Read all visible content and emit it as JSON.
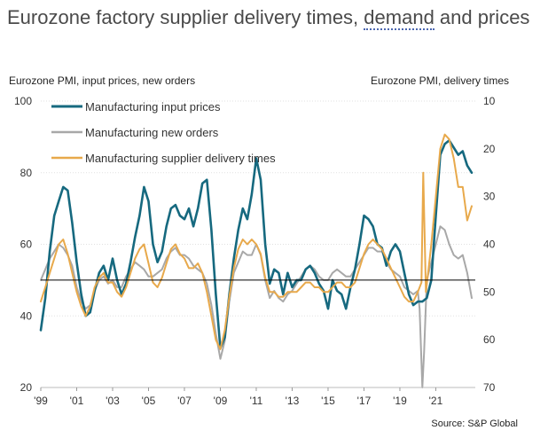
{
  "title_part1": "Eurozone factory supplier delivery times, ",
  "title_underlined": "demand",
  "title_part2": " and prices",
  "left_axis_title": "Eurozone PMI, input prices, new orders",
  "right_axis_title": "Eurozone PMI, delivery times",
  "source": "Source: S&P Global",
  "colors": {
    "input_prices": "#16697f",
    "new_orders": "#a8a8a8",
    "delivery_times": "#e8a94b",
    "reference_line": "#000000"
  },
  "chart_data": {
    "type": "line",
    "xlim": [
      1999,
      2023.2
    ],
    "x_ticks": [
      {
        "value": 1999,
        "label": "'99"
      },
      {
        "value": 2001,
        "label": "'01"
      },
      {
        "value": 2003,
        "label": "'03"
      },
      {
        "value": 2005,
        "label": "'05"
      },
      {
        "value": 2007,
        "label": "'07"
      },
      {
        "value": 2009,
        "label": "'09"
      },
      {
        "value": 2011,
        "label": "'11"
      },
      {
        "value": 2013,
        "label": "'13"
      },
      {
        "value": 2015,
        "label": "'15"
      },
      {
        "value": 2017,
        "label": "'17"
      },
      {
        "value": 2019,
        "label": "'19"
      },
      {
        "value": 2021,
        "label": "'21"
      }
    ],
    "left_axis": {
      "min": 20,
      "max": 100,
      "ticks": [
        20,
        40,
        60,
        80,
        100
      ]
    },
    "right_axis": {
      "min": 10,
      "max": 70,
      "inverted": true,
      "ticks": [
        10,
        20,
        30,
        40,
        50,
        60,
        70
      ]
    },
    "reference_line": 50,
    "series": [
      {
        "name": "Manufacturing input prices",
        "axis": "left",
        "x": [
          1999.0,
          1999.25,
          1999.5,
          1999.75,
          2000.0,
          2000.25,
          2000.5,
          2000.75,
          2001.0,
          2001.25,
          2001.5,
          2001.75,
          2002.0,
          2002.25,
          2002.5,
          2002.75,
          2003.0,
          2003.25,
          2003.5,
          2003.75,
          2004.0,
          2004.25,
          2004.5,
          2004.75,
          2005.0,
          2005.25,
          2005.5,
          2005.75,
          2006.0,
          2006.25,
          2006.5,
          2006.75,
          2007.0,
          2007.25,
          2007.5,
          2007.75,
          2008.0,
          2008.25,
          2008.5,
          2008.75,
          2009.0,
          2009.25,
          2009.5,
          2009.75,
          2010.0,
          2010.25,
          2010.5,
          2010.75,
          2011.0,
          2011.25,
          2011.5,
          2011.75,
          2012.0,
          2012.25,
          2012.5,
          2012.75,
          2013.0,
          2013.25,
          2013.5,
          2013.75,
          2014.0,
          2014.25,
          2014.5,
          2014.75,
          2015.0,
          2015.25,
          2015.5,
          2015.75,
          2016.0,
          2016.25,
          2016.5,
          2016.75,
          2017.0,
          2017.25,
          2017.5,
          2017.75,
          2018.0,
          2018.25,
          2018.5,
          2018.75,
          2019.0,
          2019.25,
          2019.5,
          2019.75,
          2020.0,
          2020.25,
          2020.5,
          2020.75,
          2021.0,
          2021.25,
          2021.5,
          2021.75,
          2022.0,
          2022.25,
          2022.5,
          2022.75,
          2023.0
        ],
        "values": [
          36,
          45,
          58,
          68,
          72,
          76,
          75,
          66,
          55,
          46,
          40,
          41,
          47,
          52,
          54,
          50,
          56,
          50,
          46,
          49,
          55,
          62,
          68,
          76,
          72,
          60,
          55,
          58,
          65,
          70,
          71,
          68,
          67,
          70,
          65,
          70,
          77,
          78,
          64,
          46,
          31,
          34,
          46,
          56,
          64,
          70,
          67,
          74,
          84,
          78,
          60,
          49,
          53,
          52,
          46,
          52,
          48,
          50,
          50,
          53,
          54,
          52,
          49,
          47,
          42,
          50,
          47,
          46,
          42,
          48,
          53,
          60,
          68,
          67,
          65,
          60,
          59,
          54,
          58,
          60,
          58,
          52,
          46,
          43,
          44,
          44,
          45,
          50,
          68,
          85,
          88,
          89,
          87,
          85,
          86,
          82,
          80
        ]
      },
      {
        "name": "Manufacturing new orders",
        "axis": "left",
        "x": [
          1999.0,
          1999.25,
          1999.5,
          1999.75,
          2000.0,
          2000.25,
          2000.5,
          2000.75,
          2001.0,
          2001.25,
          2001.5,
          2001.75,
          2002.0,
          2002.25,
          2002.5,
          2002.75,
          2003.0,
          2003.25,
          2003.5,
          2003.75,
          2004.0,
          2004.25,
          2004.5,
          2004.75,
          2005.0,
          2005.25,
          2005.5,
          2005.75,
          2006.0,
          2006.25,
          2006.5,
          2006.75,
          2007.0,
          2007.25,
          2007.5,
          2007.75,
          2008.0,
          2008.25,
          2008.5,
          2008.75,
          2009.0,
          2009.25,
          2009.5,
          2009.75,
          2010.0,
          2010.25,
          2010.5,
          2010.75,
          2011.0,
          2011.25,
          2011.5,
          2011.75,
          2012.0,
          2012.25,
          2012.5,
          2012.75,
          2013.0,
          2013.25,
          2013.5,
          2013.75,
          2014.0,
          2014.25,
          2014.5,
          2014.75,
          2015.0,
          2015.25,
          2015.5,
          2015.75,
          2016.0,
          2016.25,
          2016.5,
          2016.75,
          2017.0,
          2017.25,
          2017.5,
          2017.75,
          2018.0,
          2018.25,
          2018.5,
          2018.75,
          2019.0,
          2019.25,
          2019.5,
          2019.75,
          2020.0,
          2020.1,
          2020.25,
          2020.35,
          2020.5,
          2020.75,
          2021.0,
          2021.25,
          2021.5,
          2021.75,
          2022.0,
          2022.25,
          2022.5,
          2022.75,
          2023.0
        ],
        "values": [
          50,
          53,
          56,
          58,
          60,
          59,
          57,
          54,
          48,
          44,
          42,
          43,
          47,
          50,
          51,
          49,
          50,
          48,
          48,
          51,
          53,
          55,
          54,
          53,
          51,
          51,
          52,
          53,
          56,
          58,
          59,
          57,
          57,
          56,
          54,
          53,
          52,
          49,
          43,
          35,
          28,
          33,
          44,
          52,
          55,
          58,
          57,
          57,
          60,
          57,
          50,
          45,
          47,
          45,
          44,
          46,
          47,
          49,
          51,
          53,
          54,
          53,
          51,
          50,
          50,
          52,
          53,
          52,
          51,
          51,
          53,
          55,
          57,
          59,
          59,
          58,
          58,
          55,
          53,
          52,
          51,
          48,
          47,
          46,
          47,
          42,
          20,
          30,
          50,
          55,
          60,
          65,
          64,
          60,
          57,
          56,
          57,
          52,
          45
        ]
      },
      {
        "name": "Manufacturing supplier delivery times",
        "axis": "right",
        "x": [
          1999.0,
          1999.25,
          1999.5,
          1999.75,
          2000.0,
          2000.25,
          2000.5,
          2000.75,
          2001.0,
          2001.25,
          2001.5,
          2001.75,
          2002.0,
          2002.25,
          2002.5,
          2002.75,
          2003.0,
          2003.25,
          2003.5,
          2003.75,
          2004.0,
          2004.25,
          2004.5,
          2004.75,
          2005.0,
          2005.25,
          2005.5,
          2005.75,
          2006.0,
          2006.25,
          2006.5,
          2006.75,
          2007.0,
          2007.25,
          2007.5,
          2007.75,
          2008.0,
          2008.25,
          2008.5,
          2008.75,
          2009.0,
          2009.25,
          2009.5,
          2009.75,
          2010.0,
          2010.25,
          2010.5,
          2010.75,
          2011.0,
          2011.25,
          2011.5,
          2011.75,
          2012.0,
          2012.25,
          2012.5,
          2012.75,
          2013.0,
          2013.25,
          2013.5,
          2013.75,
          2014.0,
          2014.25,
          2014.5,
          2014.75,
          2015.0,
          2015.25,
          2015.5,
          2015.75,
          2016.0,
          2016.25,
          2016.5,
          2016.75,
          2017.0,
          2017.25,
          2017.5,
          2017.75,
          2018.0,
          2018.25,
          2018.5,
          2018.75,
          2019.0,
          2019.25,
          2019.5,
          2019.75,
          2020.0,
          2020.2,
          2020.3,
          2020.45,
          2020.6,
          2020.75,
          2021.0,
          2021.25,
          2021.5,
          2021.75,
          2022.0,
          2022.25,
          2022.5,
          2022.75,
          2023.0
        ],
        "values": [
          52,
          49,
          46,
          43,
          40,
          39,
          42,
          46,
          50,
          53,
          55,
          53,
          49,
          47,
          46,
          48,
          48,
          50,
          51,
          49,
          46,
          43,
          41,
          40,
          44,
          48,
          49,
          47,
          44,
          41,
          40,
          42,
          43,
          45,
          45,
          44,
          46,
          50,
          55,
          60,
          62,
          58,
          51,
          45,
          41,
          39,
          40,
          39,
          40,
          42,
          47,
          50,
          50,
          51,
          51,
          50,
          50,
          50,
          49,
          48,
          48,
          49,
          49,
          50,
          50,
          49,
          48,
          48,
          49,
          49,
          48,
          45,
          42,
          40,
          39,
          40,
          41,
          43,
          45,
          47,
          49,
          51,
          52,
          52,
          50,
          48,
          25,
          50,
          45,
          40,
          30,
          20,
          17,
          18,
          22,
          28,
          28,
          35,
          32
        ]
      }
    ]
  }
}
